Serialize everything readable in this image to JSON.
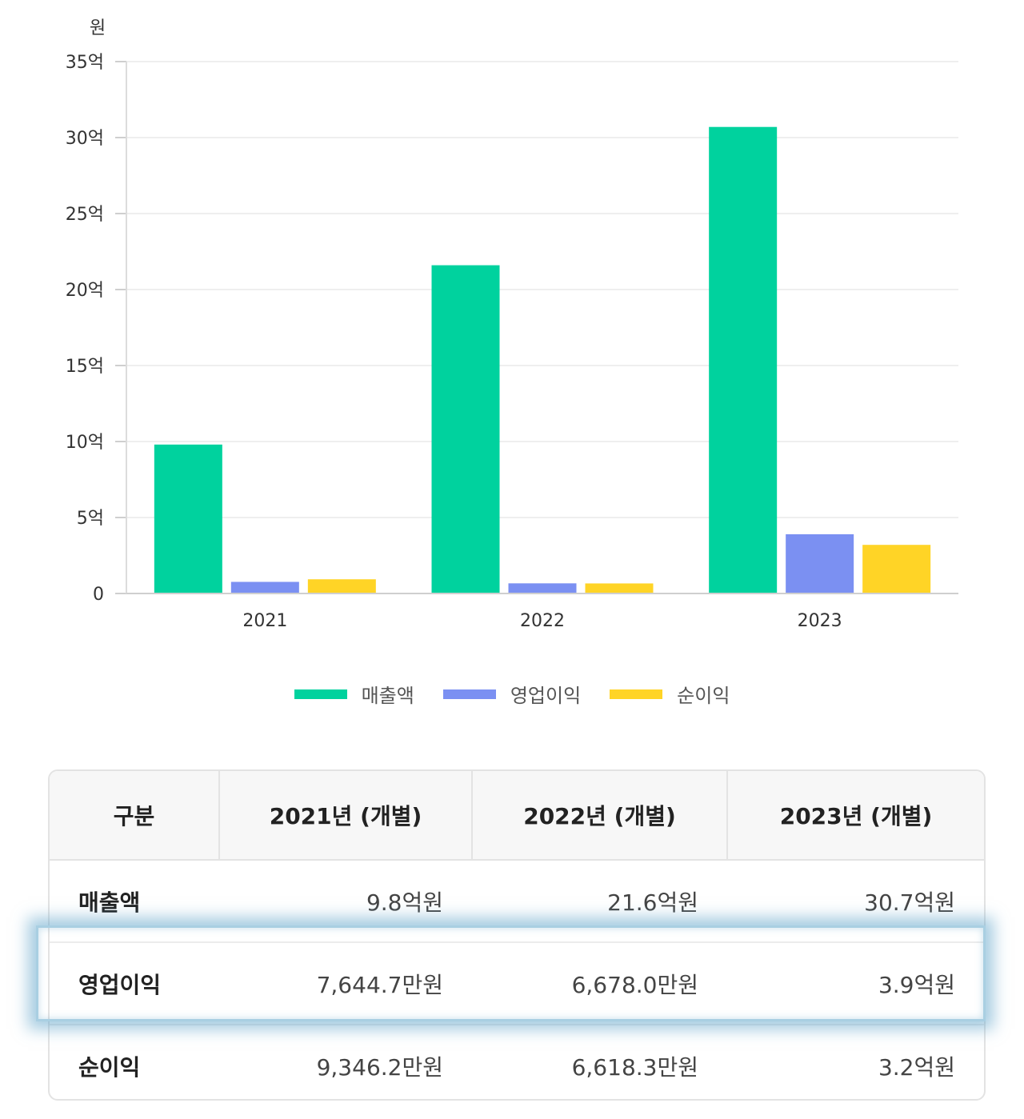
{
  "chart_data": {
    "type": "bar",
    "yunit": "원",
    "categories": [
      "2021",
      "2022",
      "2023"
    ],
    "ylim": [
      0,
      3500000000
    ],
    "yticks": [
      {
        "value": 0,
        "label": "0"
      },
      {
        "value": 500000000,
        "label": "5억"
      },
      {
        "value": 1000000000,
        "label": "10억"
      },
      {
        "value": 1500000000,
        "label": "15억"
      },
      {
        "value": 2000000000,
        "label": "20억"
      },
      {
        "value": 2500000000,
        "label": "25억"
      },
      {
        "value": 3000000000,
        "label": "30억"
      },
      {
        "value": 3500000000,
        "label": "35억"
      }
    ],
    "grid": true,
    "legend_position": "bottom",
    "series": [
      {
        "name": "매출액",
        "color": "#00d29e",
        "values": [
          980000000,
          2160000000,
          3070000000
        ]
      },
      {
        "name": "영업이익",
        "color": "#7b90f2",
        "values": [
          76447000,
          66780000,
          390000000
        ]
      },
      {
        "name": "순이익",
        "color": "#ffd426",
        "values": [
          93462000,
          66183000,
          320000000
        ]
      }
    ]
  },
  "table": {
    "headers": [
      "구분",
      "2021년 (개별)",
      "2022년 (개별)",
      "2023년 (개별)"
    ],
    "rows": [
      {
        "label": "매출액",
        "values": [
          "9.8억원",
          "21.6억원",
          "30.7억원"
        ]
      },
      {
        "label": "영업이익",
        "values": [
          "7,644.7만원",
          "6,678.0만원",
          "3.9억원"
        ]
      },
      {
        "label": "순이익",
        "values": [
          "9,346.2만원",
          "6,618.3만원",
          "3.2억원"
        ]
      }
    ]
  },
  "highlight": {
    "row": "영업이익",
    "color": "#a9cfe2"
  }
}
